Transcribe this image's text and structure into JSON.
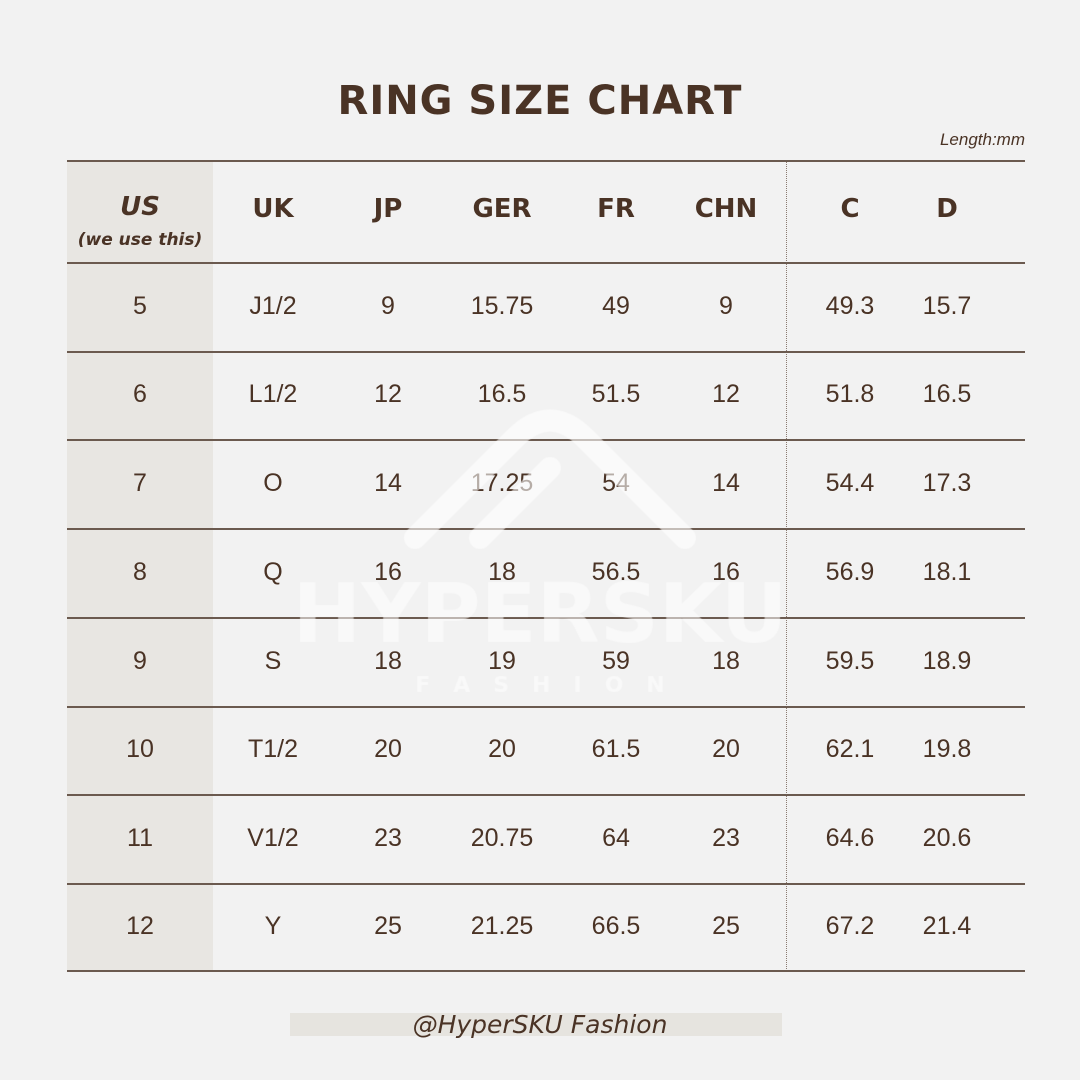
{
  "title": "RING SIZE CHART",
  "unit_note": "Length:mm",
  "table": {
    "headers": [
      "US",
      "UK",
      "JP",
      "GER",
      "FR",
      "CHN",
      "C",
      "D"
    ],
    "us_note": "(we use this)",
    "rows": [
      [
        "5",
        "J1/2",
        "9",
        "15.75",
        "49",
        "9",
        "49.3",
        "15.7"
      ],
      [
        "6",
        "L1/2",
        "12",
        "16.5",
        "51.5",
        "12",
        "51.8",
        "16.5"
      ],
      [
        "7",
        "O",
        "14",
        "17.25",
        "54",
        "14",
        "54.4",
        "17.3"
      ],
      [
        "8",
        "Q",
        "16",
        "18",
        "56.5",
        "16",
        "56.9",
        "18.1"
      ],
      [
        "9",
        "S",
        "18",
        "19",
        "59",
        "18",
        "59.5",
        "18.9"
      ],
      [
        "10",
        "T1/2",
        "20",
        "20",
        "61.5",
        "20",
        "62.1",
        "19.8"
      ],
      [
        "11",
        "V1/2",
        "23",
        "20.75",
        "64",
        "23",
        "64.6",
        "20.6"
      ],
      [
        "12",
        "Y",
        "25",
        "21.25",
        "66.5",
        "25",
        "67.2",
        "21.4"
      ]
    ]
  },
  "watermark": {
    "brand": "HYPERSKU",
    "tagline": "F A S H I O N"
  },
  "footer": "@HyperSKU Fashion",
  "colors": {
    "text": "#4a3325",
    "background": "#f2f2f2",
    "us_column": "#e8e6e2",
    "rule": "#6b5a4f"
  }
}
